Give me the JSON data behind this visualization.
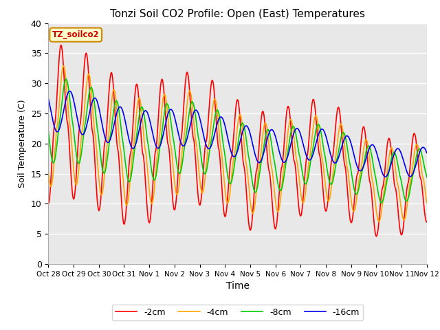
{
  "title": "Tonzi Soil CO2 Profile: Open (East) Temperatures",
  "xlabel": "Time",
  "ylabel": "Soil Temperature (C)",
  "ylim": [
    0,
    40
  ],
  "line_colors": [
    "#ff0000",
    "#ffa500",
    "#00cc00",
    "#0000ee"
  ],
  "line_labels": [
    "-2cm",
    "-4cm",
    "-8cm",
    "-16cm"
  ],
  "legend_title": "TZ_soilco2",
  "bg_color": "#e8e8e8",
  "x_tick_labels": [
    "Oct 28",
    "Oct 29",
    "Oct 30",
    "Oct 31",
    "Nov 1",
    "Nov 2",
    "Nov 3",
    "Nov 4",
    "Nov 5",
    "Nov 6",
    "Nov 7",
    "Nov 8",
    "Nov 9",
    "Nov 10",
    "Nov 11",
    "Nov 12"
  ],
  "figsize": [
    6.4,
    4.8
  ],
  "dpi": 100
}
